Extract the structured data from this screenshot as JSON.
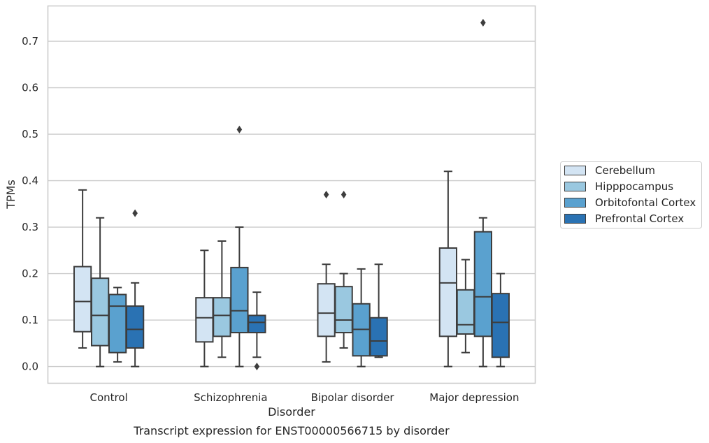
{
  "chart_data": {
    "type": "box",
    "title": "",
    "caption": "Transcript expression for ENST00000566715 by disorder",
    "xlabel": "Disorder",
    "ylabel": "TPMs",
    "ylim": [
      -0.036,
      0.776
    ],
    "yticks": [
      0.0,
      0.1,
      0.2,
      0.3,
      0.4,
      0.5,
      0.6,
      0.7
    ],
    "ytick_labels": [
      "0.0",
      "0.1",
      "0.2",
      "0.3",
      "0.4",
      "0.5",
      "0.6",
      "0.7"
    ],
    "grid": "horizontal",
    "legend_position": "right",
    "categories": [
      "Control",
      "Schizophrenia",
      "Bipolar disorder",
      "Major depression"
    ],
    "series": [
      {
        "name": "Cerebellum",
        "color": "#d3e4f3",
        "boxes": [
          {
            "whisker_low": 0.04,
            "q1": 0.075,
            "median": 0.14,
            "q3": 0.215,
            "whisker_high": 0.38,
            "outliers": []
          },
          {
            "whisker_low": 0.0,
            "q1": 0.053,
            "median": 0.105,
            "q3": 0.148,
            "whisker_high": 0.25,
            "outliers": []
          },
          {
            "whisker_low": 0.01,
            "q1": 0.065,
            "median": 0.115,
            "q3": 0.178,
            "whisker_high": 0.22,
            "outliers": [
              0.37
            ]
          },
          {
            "whisker_low": 0.0,
            "q1": 0.065,
            "median": 0.18,
            "q3": 0.255,
            "whisker_high": 0.42,
            "outliers": []
          }
        ]
      },
      {
        "name": "Hipppocampus",
        "color": "#9ac8e0",
        "boxes": [
          {
            "whisker_low": 0.0,
            "q1": 0.045,
            "median": 0.11,
            "q3": 0.19,
            "whisker_high": 0.32,
            "outliers": []
          },
          {
            "whisker_low": 0.02,
            "q1": 0.065,
            "median": 0.11,
            "q3": 0.148,
            "whisker_high": 0.27,
            "outliers": []
          },
          {
            "whisker_low": 0.04,
            "q1": 0.073,
            "median": 0.1,
            "q3": 0.172,
            "whisker_high": 0.2,
            "outliers": [
              0.37
            ]
          },
          {
            "whisker_low": 0.03,
            "q1": 0.07,
            "median": 0.09,
            "q3": 0.165,
            "whisker_high": 0.23,
            "outliers": []
          }
        ]
      },
      {
        "name": "Orbitofontal Cortex",
        "color": "#5aa1cf",
        "boxes": [
          {
            "whisker_low": 0.01,
            "q1": 0.03,
            "median": 0.13,
            "q3": 0.155,
            "whisker_high": 0.17,
            "outliers": []
          },
          {
            "whisker_low": 0.0,
            "q1": 0.073,
            "median": 0.12,
            "q3": 0.213,
            "whisker_high": 0.3,
            "outliers": [
              0.51
            ]
          },
          {
            "whisker_low": 0.0,
            "q1": 0.023,
            "median": 0.08,
            "q3": 0.135,
            "whisker_high": 0.21,
            "outliers": []
          },
          {
            "whisker_low": 0.0,
            "q1": 0.065,
            "median": 0.15,
            "q3": 0.29,
            "whisker_high": 0.32,
            "outliers": [
              0.74
            ]
          }
        ]
      },
      {
        "name": "Prefrontal Cortex",
        "color": "#2a72b3",
        "boxes": [
          {
            "whisker_low": 0.0,
            "q1": 0.04,
            "median": 0.08,
            "q3": 0.13,
            "whisker_high": 0.18,
            "outliers": [
              0.33
            ]
          },
          {
            "whisker_low": 0.02,
            "q1": 0.073,
            "median": 0.095,
            "q3": 0.11,
            "whisker_high": 0.16,
            "outliers": [
              0.0
            ]
          },
          {
            "whisker_low": 0.02,
            "q1": 0.023,
            "median": 0.055,
            "q3": 0.105,
            "whisker_high": 0.22,
            "outliers": []
          },
          {
            "whisker_low": 0.0,
            "q1": 0.02,
            "median": 0.095,
            "q3": 0.157,
            "whisker_high": 0.2,
            "outliers": []
          }
        ]
      }
    ]
  }
}
